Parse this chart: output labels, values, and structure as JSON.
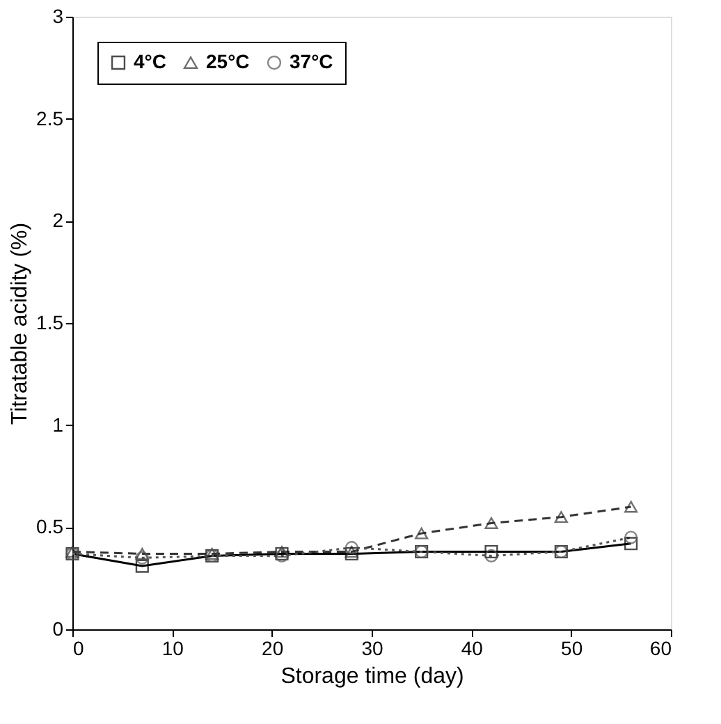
{
  "chart_data": {
    "type": "line",
    "xlabel": "Storage time (day)",
    "ylabel": "Titratable acidity (%)",
    "x": [
      0,
      7,
      14,
      21,
      28,
      35,
      42,
      49,
      56
    ],
    "series": [
      {
        "name": "4°C",
        "color": "#000000",
        "marker": "square",
        "line_style": "solid",
        "values": [
          0.37,
          0.31,
          0.36,
          0.37,
          0.37,
          0.38,
          0.38,
          0.38,
          0.42
        ]
      },
      {
        "name": "25°C",
        "color": "#333333",
        "marker": "triangle",
        "line_style": "dashed",
        "values": [
          0.38,
          0.37,
          0.37,
          0.38,
          0.38,
          0.47,
          0.52,
          0.55,
          0.6
        ]
      },
      {
        "name": "37°C",
        "color": "#555555",
        "marker": "circle",
        "line_style": "dotted",
        "values": [
          0.37,
          0.35,
          0.36,
          0.36,
          0.4,
          0.38,
          0.36,
          0.38,
          0.45
        ]
      }
    ],
    "xlim": [
      0,
      60
    ],
    "xticks": [
      0,
      10,
      20,
      30,
      40,
      50,
      60
    ],
    "ylim": [
      0,
      3
    ],
    "yticks": [
      0,
      0.5,
      1,
      1.5,
      2,
      2.5,
      3
    ],
    "grid": false,
    "legend": "top left"
  }
}
